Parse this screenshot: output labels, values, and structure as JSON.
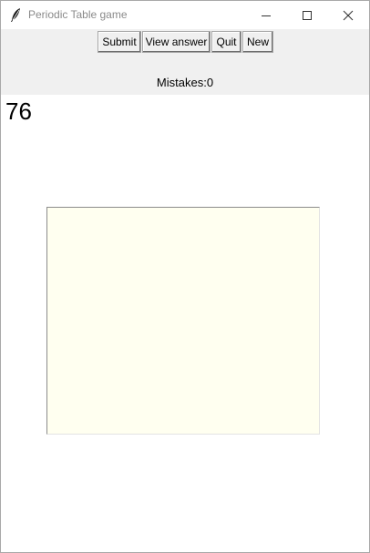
{
  "window": {
    "title": "Periodic Table game",
    "icons": {
      "app": "feather-icon",
      "minimize": "minimize-icon",
      "maximize": "maximize-icon",
      "close": "close-icon"
    }
  },
  "toolbar": {
    "submit_label": "Submit",
    "view_answer_label": "View answer",
    "quit_label": "Quit",
    "new_label": "New"
  },
  "status": {
    "mistakes_label": "Mistakes:",
    "mistakes_count": "0"
  },
  "question": {
    "atomic_number": "76"
  },
  "answer_box": {
    "value": "",
    "background": "#fffff0"
  }
}
